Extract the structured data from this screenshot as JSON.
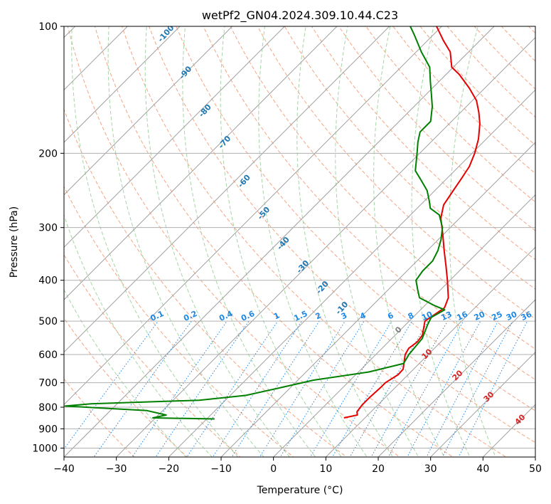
{
  "chart_data": {
    "type": "line",
    "subtype": "skew-T log-p diagram",
    "title": "wetPf2_GN04.2024.309.10.44.C23",
    "xlabel": "Temperature (°C)",
    "ylabel": "Pressure (hPa)",
    "xlim": [
      -40,
      50
    ],
    "ylim": [
      1050,
      100
    ],
    "y_scale": "log",
    "x_ticks": [
      "−40",
      "−30",
      "−20",
      "−10",
      "0",
      "10",
      "20",
      "30",
      "40",
      "50"
    ],
    "y_ticks": [
      "100",
      "200",
      "300",
      "400",
      "500",
      "600",
      "700",
      "800",
      "900",
      "1000"
    ],
    "grid": true,
    "background_lines": {
      "isotherms_color": "#a0a0a0",
      "dry_adiabats_color": "#f4a582",
      "moist_adiabats_color": "#a6d5a6",
      "mixing_ratio_color": "#1e88e5",
      "mixing_ratio_labels": [
        "0.1",
        "0.2",
        "0.4",
        "0.6",
        "1",
        "1.5",
        "2",
        "3",
        "4",
        "6",
        "8",
        "10",
        "13",
        "16",
        "20",
        "25",
        "30",
        "36"
      ],
      "moist_adiabat_labels": [
        "-100",
        "-90",
        "-80",
        "-70",
        "-60",
        "-50",
        "-40",
        "-30",
        "-20",
        "-10"
      ],
      "dry_adiabat_labels": [
        "0",
        "10",
        "20",
        "30",
        "40"
      ]
    },
    "series": [
      {
        "color": "#e60000",
        "points": [
          [
            848,
            6.0
          ],
          [
            835,
            8.0
          ],
          [
            820,
            7.3
          ],
          [
            790,
            7.0
          ],
          [
            760,
            7.0
          ],
          [
            720,
            7.2
          ],
          [
            700,
            7.2
          ],
          [
            670,
            8.1
          ],
          [
            650,
            8.0
          ],
          [
            600,
            5.6
          ],
          [
            580,
            5.1
          ],
          [
            560,
            5.5
          ],
          [
            540,
            5.2
          ],
          [
            500,
            3.0
          ],
          [
            465,
            4.2
          ],
          [
            440,
            3.0
          ],
          [
            400,
            -0.5
          ],
          [
            370,
            -3.5
          ],
          [
            340,
            -6.8
          ],
          [
            310,
            -10.3
          ],
          [
            285,
            -13.6
          ],
          [
            265,
            -15.6
          ],
          [
            245,
            -16.5
          ],
          [
            230,
            -17.2
          ],
          [
            215,
            -18.0
          ],
          [
            200,
            -19.5
          ],
          [
            185,
            -21.5
          ],
          [
            170,
            -24.2
          ],
          [
            160,
            -26.5
          ],
          [
            150,
            -29.2
          ],
          [
            140,
            -33.0
          ],
          [
            130,
            -37.5
          ],
          [
            125,
            -40.3
          ],
          [
            115,
            -43.5
          ],
          [
            108,
            -47.0
          ],
          [
            100,
            -51.0
          ]
        ]
      },
      {
        "color": "#008000",
        "points": [
          [
            853,
            -18.5
          ],
          [
            848,
            -30.5
          ],
          [
            835,
            -28.5
          ],
          [
            815,
            -33.0
          ],
          [
            795,
            -49.5
          ],
          [
            785,
            -45.0
          ],
          [
            770,
            -25.0
          ],
          [
            750,
            -17.0
          ],
          [
            720,
            -12.0
          ],
          [
            690,
            -7.0
          ],
          [
            660,
            2.0
          ],
          [
            630,
            7.0
          ],
          [
            600,
            6.3
          ],
          [
            550,
            5.8
          ],
          [
            510,
            4.2
          ],
          [
            490,
            3.5
          ],
          [
            470,
            4.6
          ],
          [
            460,
            2.0
          ],
          [
            440,
            -2.5
          ],
          [
            420,
            -4.5
          ],
          [
            400,
            -6.5
          ],
          [
            380,
            -7.0
          ],
          [
            360,
            -7.0
          ],
          [
            340,
            -8.0
          ],
          [
            320,
            -9.5
          ],
          [
            300,
            -11.5
          ],
          [
            280,
            -14.5
          ],
          [
            270,
            -17.5
          ],
          [
            260,
            -19.0
          ],
          [
            245,
            -21.5
          ],
          [
            230,
            -25.0
          ],
          [
            220,
            -27.5
          ],
          [
            200,
            -30.5
          ],
          [
            188,
            -32.5
          ],
          [
            178,
            -34.0
          ],
          [
            168,
            -34.0
          ],
          [
            155,
            -36.5
          ],
          [
            145,
            -39.0
          ],
          [
            135,
            -41.7
          ],
          [
            125,
            -44.5
          ],
          [
            115,
            -49.0
          ],
          [
            105,
            -53.5
          ],
          [
            100,
            -56.0
          ]
        ]
      }
    ]
  }
}
